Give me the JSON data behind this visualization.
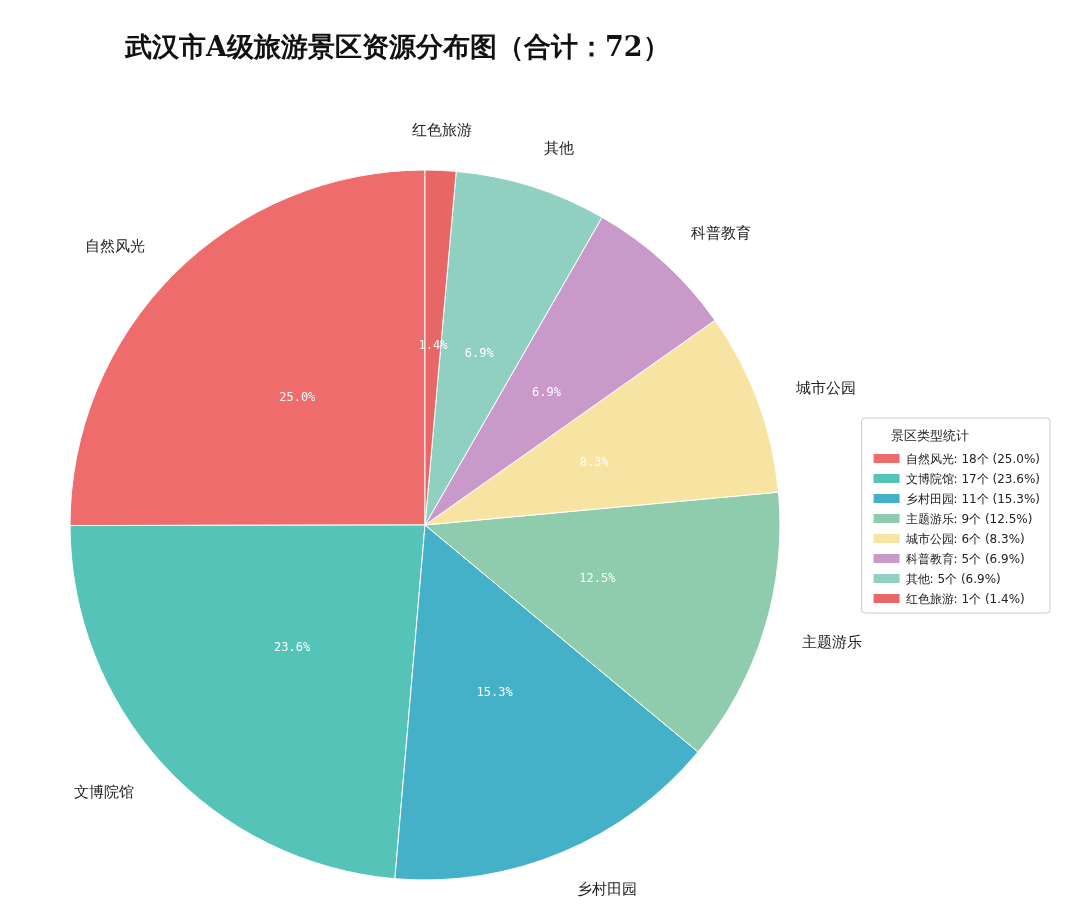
{
  "chart_data": {
    "type": "pie",
    "title": "武汉市A级旅游景区资源分布图（合计：72）",
    "legend_title": "景区类型统计",
    "legend": "right",
    "categories": [
      "自然风光",
      "文博院馆",
      "乡村田园",
      "主题游乐",
      "城市公园",
      "科普教育",
      "其他",
      "红色旅游"
    ],
    "values": [
      25.0,
      23.6,
      15.3,
      12.5,
      8.3,
      6.9,
      6.9,
      1.4
    ],
    "colors": [
      "#ee6c6c",
      "#56c3b9",
      "#45b1c9",
      "#8fcbad",
      "#f7e3a2",
      "#c99ac9",
      "#8fd0c1",
      "#e96666"
    ],
    "value_labels": [
      "25.0%",
      "23.6%",
      "15.3%",
      "12.5%",
      "8.3%",
      "6.9%",
      "6.9%",
      "1.4%"
    ],
    "annotations": [
      ": 18个 (25.0%)",
      ": 17个 (23.6%)",
      ": 11个 (15.3%)",
      ": 9个 (12.5%)",
      ": 6个 (8.3%)",
      ": 5个 (6.9%)",
      ": 5个 (6.9%)",
      ": 1个 (1.4%)"
    ]
  }
}
